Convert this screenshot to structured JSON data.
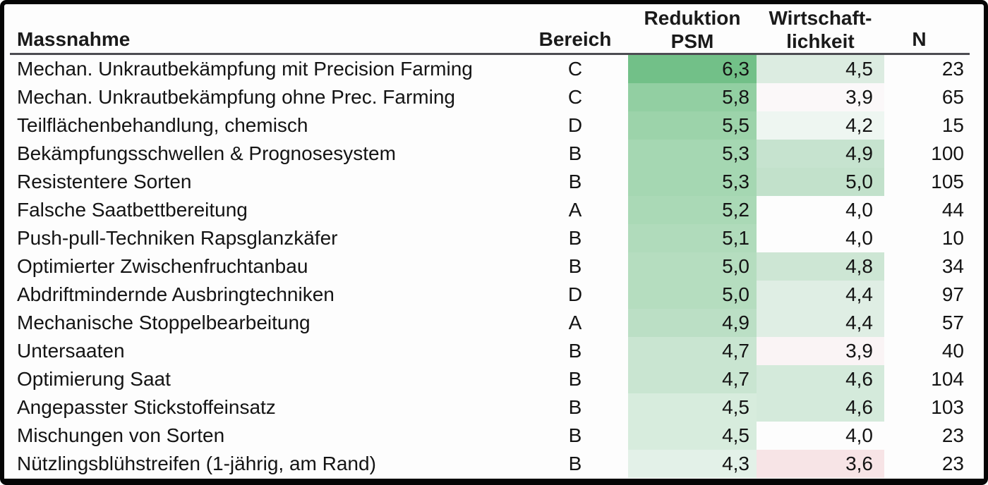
{
  "table": {
    "header": {
      "massnahme": "Massnahme",
      "bereich": "Bereich",
      "reduktion_line1": "Reduktion",
      "reduktion_line2": "PSM",
      "wirtschaft_line1": "Wirtschaft-",
      "wirtschaft_line2": "lichkeit",
      "n": "N"
    },
    "colors": {
      "header_rule": "#4c4c52",
      "frame_border": "#050505",
      "text": "#141414",
      "heatmap_max_green": "#72c088",
      "heatmap_mid_white": "#fdfdfd",
      "heatmap_low_red": "#f7e4e6"
    },
    "rows": [
      {
        "massnahme": "Mechan. Unkrautbekämpfung mit Precision Farming",
        "bereich": "C",
        "reduktion_psm": "6,3",
        "wirtschaftlichkeit": "4,5",
        "n": "23",
        "psm_color": "#72c088",
        "wirt_color": "#dcece1"
      },
      {
        "massnahme": "Mechan. Unkrautbekämpfung ohne Prec. Farming",
        "bereich": "C",
        "reduktion_psm": "5,8",
        "wirtschaftlichkeit": "3,9",
        "n": "65",
        "psm_color": "#92cfa2",
        "wirt_color": "#fbf8f9"
      },
      {
        "massnahme": "Teilflächenbehandlung, chemisch",
        "bereich": "D",
        "reduktion_psm": "5,5",
        "wirtschaftlichkeit": "4,2",
        "n": "15",
        "psm_color": "#9cd3aa",
        "wirt_color": "#eef6f1"
      },
      {
        "massnahme": "Bekämpfungsschwellen & Prognosesystem",
        "bereich": "B",
        "reduktion_psm": "5,3",
        "wirtschaftlichkeit": "4,9",
        "n": "100",
        "psm_color": "#a5d7b2",
        "wirt_color": "#c6e3cf"
      },
      {
        "massnahme": "Resistentere Sorten",
        "bereich": "B",
        "reduktion_psm": "5,3",
        "wirtschaftlichkeit": "5,0",
        "n": "105",
        "psm_color": "#a5d7b2",
        "wirt_color": "#c2e1cb"
      },
      {
        "massnahme": "Falsche Saatbettbereitung",
        "bereich": "A",
        "reduktion_psm": "5,2",
        "wirtschaftlichkeit": "4,0",
        "n": "44",
        "psm_color": "#aad9b6",
        "wirt_color": "#fdfdfd"
      },
      {
        "massnahme": "Push-pull-Techniken Rapsglanzkäfer",
        "bereich": "B",
        "reduktion_psm": "5,1",
        "wirtschaftlichkeit": "4,0",
        "n": "10",
        "psm_color": "#b0dbbb",
        "wirt_color": "#fdfdfd"
      },
      {
        "massnahme": "Optimierter Zwischenfruchtanbau",
        "bereich": "B",
        "reduktion_psm": "5,0",
        "wirtschaftlichkeit": "4,8",
        "n": "34",
        "psm_color": "#b5ddbf",
        "wirt_color": "#cde6d4"
      },
      {
        "massnahme": "Abdriftmindernde Ausbringtechniken",
        "bereich": "D",
        "reduktion_psm": "5,0",
        "wirtschaftlichkeit": "4,4",
        "n": "97",
        "psm_color": "#b5ddbf",
        "wirt_color": "#dfeee4"
      },
      {
        "massnahme": "Mechanische Stoppelbearbeitung",
        "bereich": "A",
        "reduktion_psm": "4,9",
        "wirtschaftlichkeit": "4,4",
        "n": "57",
        "psm_color": "#bbdfc5",
        "wirt_color": "#dfeee4"
      },
      {
        "massnahme": "Untersaaten",
        "bereich": "B",
        "reduktion_psm": "4,7",
        "wirtschaftlichkeit": "3,9",
        "n": "40",
        "psm_color": "#c9e5d1",
        "wirt_color": "#faf4f5"
      },
      {
        "massnahme": "Optimierung Saat",
        "bereich": "B",
        "reduktion_psm": "4,7",
        "wirtschaftlichkeit": "4,6",
        "n": "104",
        "psm_color": "#c9e5d1",
        "wirt_color": "#d4eadb"
      },
      {
        "massnahme": "Angepasster Stickstoffeinsatz",
        "bereich": "B",
        "reduktion_psm": "4,5",
        "wirtschaftlichkeit": "4,6",
        "n": "103",
        "psm_color": "#d7ecdd",
        "wirt_color": "#d4eadb"
      },
      {
        "massnahme": "Mischungen von Sorten",
        "bereich": "B",
        "reduktion_psm": "4,5",
        "wirtschaftlichkeit": "4,0",
        "n": "23",
        "psm_color": "#d7ecdd",
        "wirt_color": "#fdfdfd"
      },
      {
        "massnahme": "Nützlingsblühstreifen (1-jährig, am Rand)",
        "bereich": "B",
        "reduktion_psm": "4,3",
        "wirtschaftlichkeit": "3,6",
        "n": "23",
        "psm_color": "#e3f1e8",
        "wirt_color": "#f7e4e6"
      }
    ]
  },
  "chart_data": {
    "type": "table",
    "title": "",
    "columns": [
      "Massnahme",
      "Bereich",
      "Reduktion PSM",
      "Wirtschaftlichkeit",
      "N"
    ],
    "rows": [
      [
        "Mechan. Unkrautbekämpfung mit Precision Farming",
        "C",
        6.3,
        4.5,
        23
      ],
      [
        "Mechan. Unkrautbekämpfung ohne Prec. Farming",
        "C",
        5.8,
        3.9,
        65
      ],
      [
        "Teilflächenbehandlung, chemisch",
        "D",
        5.5,
        4.2,
        15
      ],
      [
        "Bekämpfungsschwellen & Prognosesystem",
        "B",
        5.3,
        4.9,
        100
      ],
      [
        "Resistentere Sorten",
        "B",
        5.3,
        5.0,
        105
      ],
      [
        "Falsche Saatbettbereitung",
        "A",
        5.2,
        4.0,
        44
      ],
      [
        "Push-pull-Techniken Rapsglanzkäfer",
        "B",
        5.1,
        4.0,
        10
      ],
      [
        "Optimierter Zwischenfruchtanbau",
        "B",
        5.0,
        4.8,
        34
      ],
      [
        "Abdriftmindernde Ausbringtechniken",
        "D",
        5.0,
        4.4,
        97
      ],
      [
        "Mechanische Stoppelbearbeitung",
        "A",
        4.9,
        4.4,
        57
      ],
      [
        "Untersaaten",
        "B",
        4.7,
        3.9,
        40
      ],
      [
        "Optimierung Saat",
        "B",
        4.7,
        4.6,
        104
      ],
      [
        "Angepasster Stickstoffeinsatz",
        "B",
        4.5,
        4.6,
        103
      ],
      [
        "Mischungen von Sorten",
        "B",
        4.5,
        4.0,
        23
      ],
      [
        "Nützlingsblühstreifen (1-jährig, am Rand)",
        "B",
        4.3,
        3.6,
        23
      ]
    ],
    "heatmap_columns": [
      "Reduktion PSM",
      "Wirtschaftlichkeit"
    ],
    "heatmap_scale": "3-color scale: low≈red (#f7e4e6 at 3.6), ≈4.0 white, high green (#72c088 at 6.3)",
    "decimal_separator": ",",
    "sorted_by": "Reduktion PSM descending"
  }
}
